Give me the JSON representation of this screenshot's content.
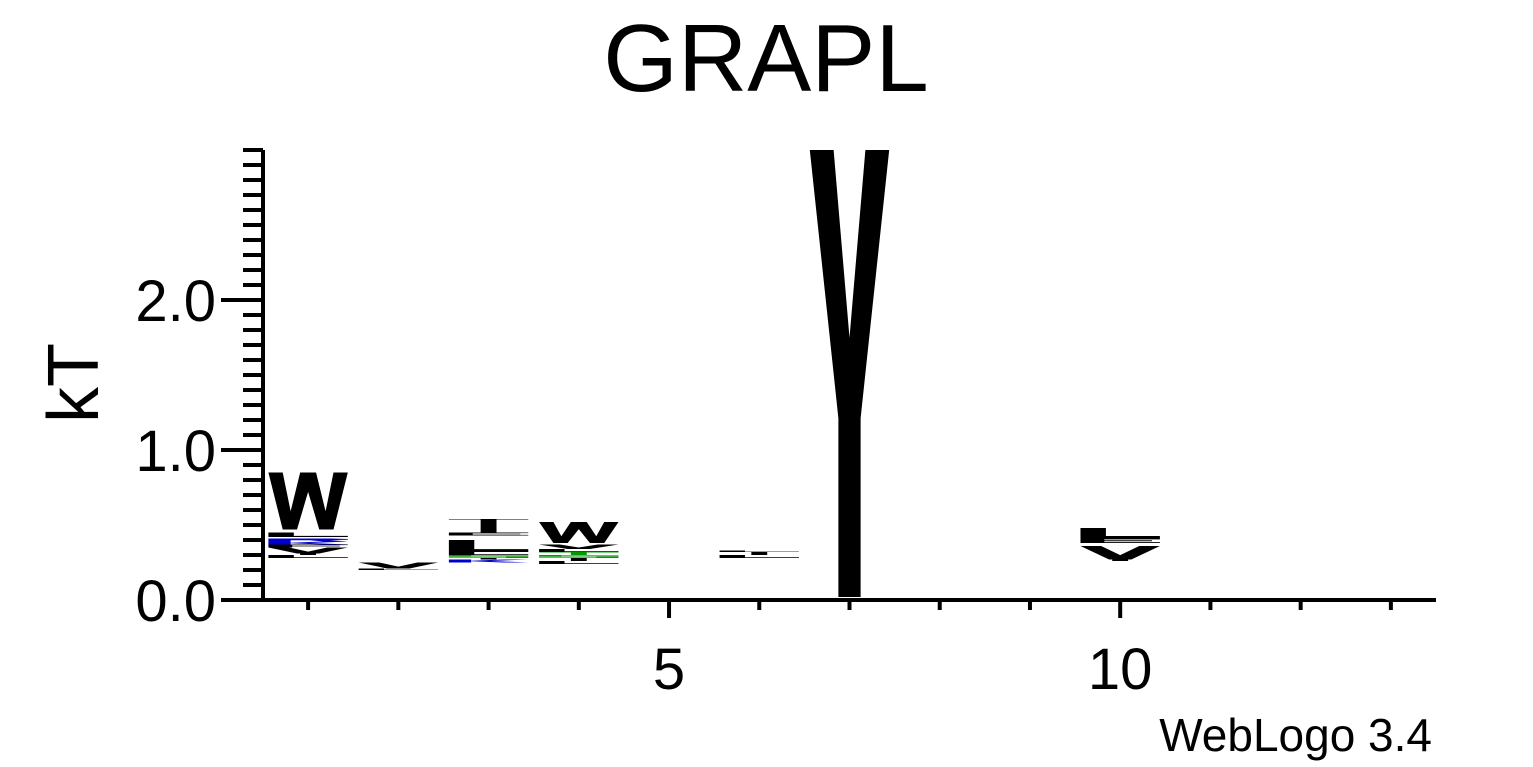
{
  "chart_data": {
    "type": "sequence-logo",
    "title": "GRAPL",
    "ylabel": "kT",
    "xlabel": "",
    "ylim": [
      0.0,
      3.0
    ],
    "y_ticks": [
      0.0,
      1.0,
      2.0
    ],
    "y_tick_labels": [
      "0.0",
      "1.0",
      "2.0"
    ],
    "y_minor_step": 0.1,
    "xlim": [
      0.5,
      13.5
    ],
    "x_ticks": [
      1,
      2,
      3,
      4,
      5,
      6,
      7,
      8,
      9,
      10,
      11,
      12,
      13
    ],
    "x_tick_labels": {
      "5": "5",
      "10": "10"
    },
    "credit": "WebLogo 3.4",
    "colors": {
      "black": "#000000",
      "blue": "#0000cc",
      "green": "#009900"
    },
    "stacks": [
      {
        "position": 1,
        "letters": [
          {
            "symbol": "L",
            "from": 0.28,
            "to": 0.3,
            "color": "#000000"
          },
          {
            "symbol": "I",
            "from": 0.3,
            "to": 0.31,
            "color": "#000000"
          },
          {
            "symbol": "V",
            "from": 0.31,
            "to": 0.35,
            "color": "#000000"
          },
          {
            "symbol": "F",
            "from": 0.35,
            "to": 0.37,
            "color": "#000000"
          },
          {
            "symbol": "K",
            "from": 0.37,
            "to": 0.39,
            "color": "#0000cc"
          },
          {
            "symbol": "R",
            "from": 0.39,
            "to": 0.41,
            "color": "#0000cc"
          },
          {
            "symbol": "L",
            "from": 0.42,
            "to": 0.45,
            "color": "#000000"
          },
          {
            "symbol": "W",
            "from": 0.47,
            "to": 0.85,
            "color": "#000000"
          }
        ]
      },
      {
        "position": 2,
        "letters": [
          {
            "symbol": "L",
            "from": 0.2,
            "to": 0.21,
            "color": "#000000"
          },
          {
            "symbol": "V",
            "from": 0.21,
            "to": 0.25,
            "color": "#000000"
          }
        ]
      },
      {
        "position": 3,
        "letters": [
          {
            "symbol": "K",
            "from": 0.25,
            "to": 0.27,
            "color": "#0000cc"
          },
          {
            "symbol": "I",
            "from": 0.27,
            "to": 0.28,
            "color": "#000000"
          },
          {
            "symbol": "S",
            "from": 0.28,
            "to": 0.3,
            "color": "#009900"
          },
          {
            "symbol": "L",
            "from": 0.3,
            "to": 0.32,
            "color": "#000000"
          },
          {
            "symbol": "L",
            "from": 0.32,
            "to": 0.4,
            "color": "#000000"
          },
          {
            "symbol": "E",
            "from": 0.43,
            "to": 0.45,
            "color": "#000000"
          },
          {
            "symbol": "I",
            "from": 0.45,
            "to": 0.52,
            "color": "#000000"
          },
          {
            "symbol": "T",
            "from": 0.52,
            "to": 0.54,
            "color": "#000000"
          }
        ]
      },
      {
        "position": 4,
        "letters": [
          {
            "symbol": "L",
            "from": 0.24,
            "to": 0.26,
            "color": "#000000"
          },
          {
            "symbol": "I",
            "from": 0.26,
            "to": 0.28,
            "color": "#000000"
          },
          {
            "symbol": "S",
            "from": 0.28,
            "to": 0.3,
            "color": "#009900"
          },
          {
            "symbol": "T",
            "from": 0.3,
            "to": 0.32,
            "color": "#009900"
          },
          {
            "symbol": "L",
            "from": 0.32,
            "to": 0.34,
            "color": "#000000"
          },
          {
            "symbol": "V",
            "from": 0.34,
            "to": 0.37,
            "color": "#000000"
          },
          {
            "symbol": "W",
            "from": 0.38,
            "to": 0.52,
            "color": "#000000"
          }
        ]
      },
      {
        "position": 6,
        "letters": [
          {
            "symbol": "L",
            "from": 0.28,
            "to": 0.3,
            "color": "#000000"
          },
          {
            "symbol": "I",
            "from": 0.3,
            "to": 0.32,
            "color": "#000000"
          },
          {
            "symbol": "L",
            "from": 0.32,
            "to": 0.33,
            "color": "#000000"
          }
        ]
      },
      {
        "position": 7,
        "letters": [
          {
            "symbol": "Y",
            "from": 0.02,
            "to": 3.0,
            "color": "#000000"
          }
        ]
      },
      {
        "position": 10,
        "letters": [
          {
            "symbol": "I",
            "from": 0.26,
            "to": 0.27,
            "color": "#000000"
          },
          {
            "symbol": "V",
            "from": 0.27,
            "to": 0.36,
            "color": "#000000"
          },
          {
            "symbol": "E",
            "from": 0.38,
            "to": 0.41,
            "color": "#000000"
          },
          {
            "symbol": "L",
            "from": 0.41,
            "to": 0.48,
            "color": "#000000"
          }
        ]
      }
    ]
  }
}
